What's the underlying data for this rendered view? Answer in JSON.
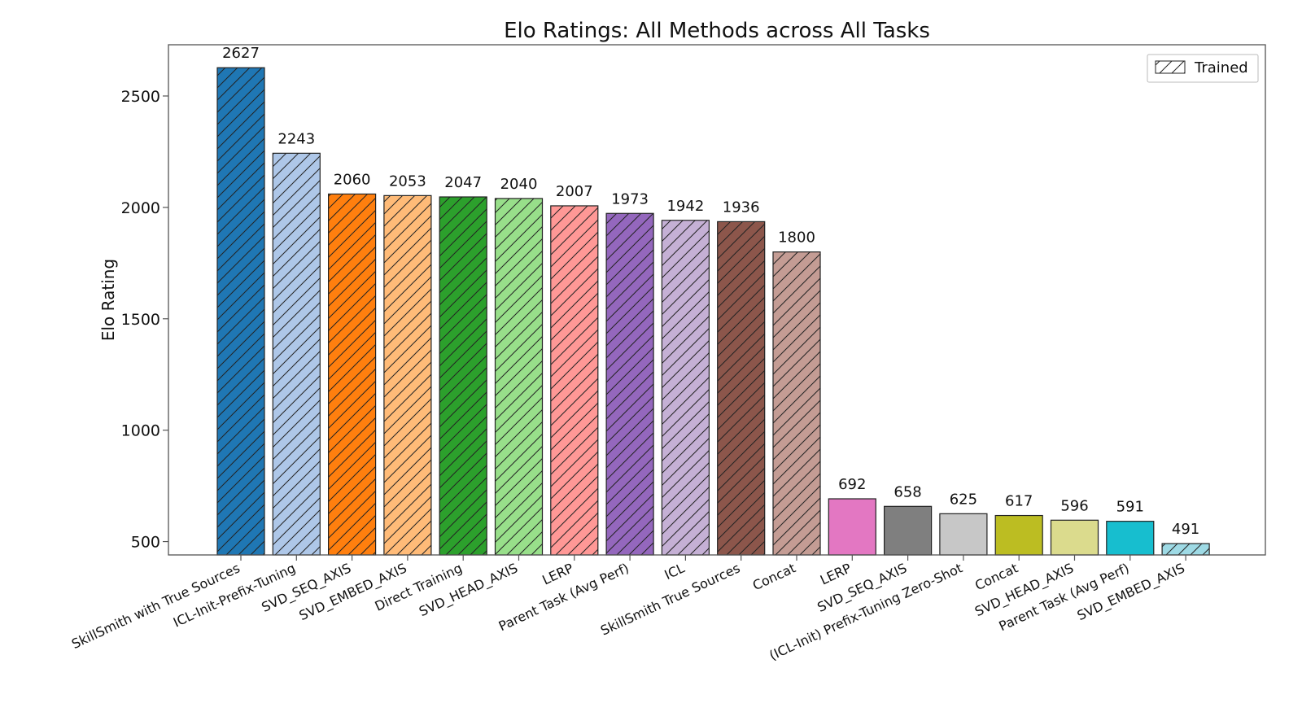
{
  "chart_data": {
    "type": "bar",
    "title": "Elo Ratings: All Methods across All Tasks",
    "xlabel": "",
    "ylabel": "Elo Rating",
    "ylim": [
      440,
      2730
    ],
    "yticks": [
      500,
      1000,
      1500,
      2000,
      2500
    ],
    "grid": false,
    "legend": {
      "placement": "top-right",
      "entries": [
        {
          "label": "Trained",
          "hatch": "diagonal"
        }
      ]
    },
    "categories": [
      "SkillSmith with True Sources",
      "ICL-Init-Prefix-Tuning",
      "SVD_SEQ_AXIS",
      "SVD_EMBED_AXIS",
      "Direct Training",
      "SVD_HEAD_AXIS",
      "LERP",
      "Parent Task (Avg Perf)",
      "ICL",
      "SkillSmith True Sources",
      "Concat",
      "LERP",
      "SVD_SEQ_AXIS",
      "(ICL-Init) Prefix-Tuning Zero-Shot",
      "Concat",
      "SVD_HEAD_AXIS",
      "Parent Task (Avg Perf)",
      "SVD_EMBED_AXIS"
    ],
    "values": [
      2627,
      2243,
      2060,
      2053,
      2047,
      2040,
      2007,
      1973,
      1942,
      1936,
      1800,
      692,
      658,
      625,
      617,
      596,
      591,
      491
    ],
    "value_labels": [
      "2627",
      "2243",
      "2060",
      "2053",
      "2047",
      "2040",
      "2007",
      "1973",
      "1942",
      "1936",
      "1800",
      "692",
      "658",
      "625",
      "617",
      "596",
      "591",
      "491"
    ],
    "colors": [
      "#1f77b4",
      "#aec7e8",
      "#ff7f0e",
      "#ffbb78",
      "#2ca02c",
      "#98df8a",
      "#ff9896",
      "#9467bd",
      "#c5b0d5",
      "#8c564b",
      "#c49c94",
      "#e377c2",
      "#7f7f7f",
      "#c7c7c7",
      "#bcbd22",
      "#dbdb8d",
      "#17becf",
      "#9edae5"
    ],
    "hatched": [
      true,
      true,
      true,
      true,
      true,
      true,
      true,
      true,
      true,
      true,
      true,
      false,
      false,
      false,
      false,
      false,
      false,
      true
    ]
  }
}
